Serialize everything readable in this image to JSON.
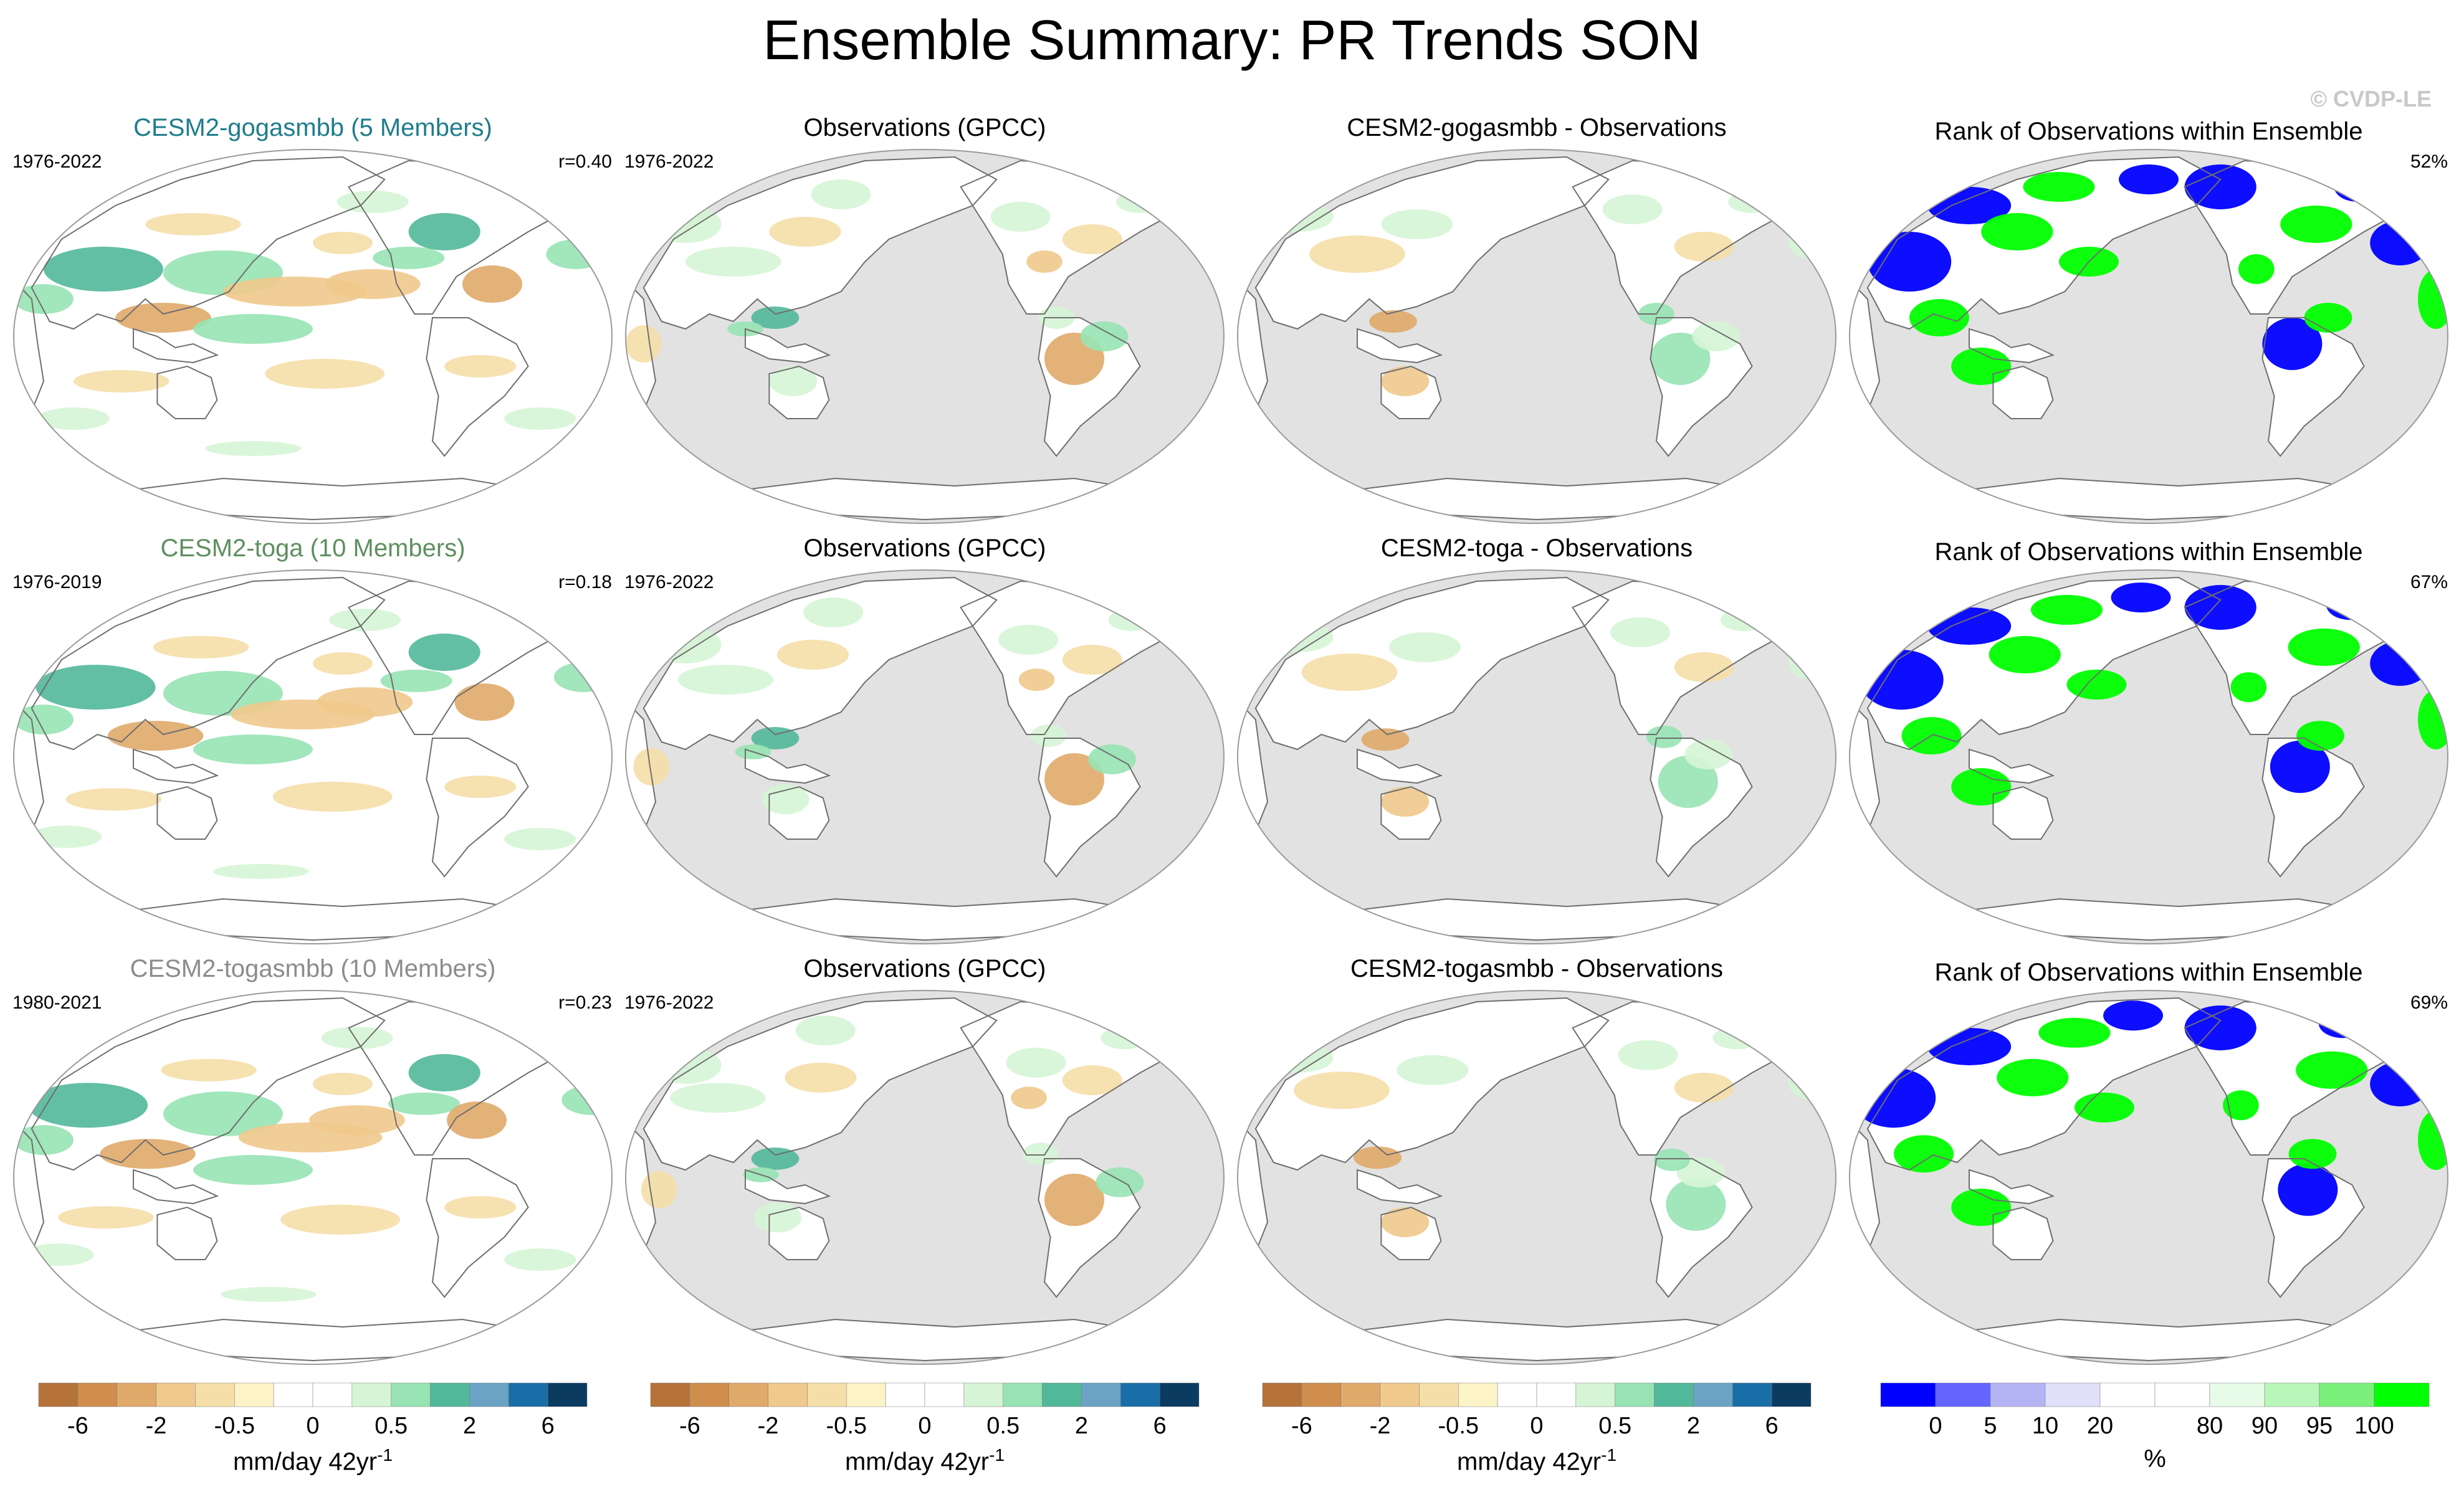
{
  "title": "Ensemble Summary: PR Trends SON",
  "watermark": "© CVDP-LE",
  "colors": {
    "ocean_gray": "#e2e2e2",
    "coast": "#6e6e6e",
    "teal_title": "#1f7d8c",
    "green_title": "#5e8f5e",
    "gray_title": "#8c8c8c",
    "rank_blue": "#0000ee",
    "rank_green": "#00ff00"
  },
  "rows": [
    {
      "model_title": "CESM2-gogasmbb (5 Members)",
      "model_years": "1976-2022",
      "corr": "r=0.40",
      "obs_title": "Observations (GPCC)",
      "obs_years": "1976-2022",
      "diff_title": "CESM2-gogasmbb - Observations",
      "rank_title": "Rank of Observations within Ensemble",
      "rank_pct": "52%"
    },
    {
      "model_title": "CESM2-toga (10 Members)",
      "model_years": "1976-2019",
      "corr": "r=0.18",
      "obs_title": "Observations (GPCC)",
      "obs_years": "1976-2022",
      "diff_title": "CESM2-toga - Observations",
      "rank_title": "Rank of Observations within Ensemble",
      "rank_pct": "67%"
    },
    {
      "model_title": "CESM2-togasmbb (10 Members)",
      "model_years": "1980-2021",
      "corr": "r=0.23",
      "obs_title": "Observations (GPCC)",
      "obs_years": "1976-2022",
      "diff_title": "CESM2-togasmbb - Observations",
      "rank_title": "Rank of Observations within Ensemble",
      "rank_pct": "69%"
    }
  ],
  "trend_colorbar": {
    "colors": [
      "#b5733a",
      "#cf8e4e",
      "#e0aa6a",
      "#f0c98c",
      "#f5dea8",
      "#fcf3c7",
      "#ffffff",
      "#ffffff",
      "#d6f5d6",
      "#98e3b4",
      "#52b89a",
      "#6aa3c4",
      "#1a6ea8",
      "#0b3b60"
    ],
    "labels": [
      "-6",
      "-2",
      "-0.5",
      "0",
      "0.5",
      "2",
      "6"
    ],
    "unit": "mm/day 42yr",
    "unit_sup": "-1"
  },
  "rank_colorbar": {
    "colors": [
      "#0000ff",
      "#6464ff",
      "#b4b4f5",
      "#e0e0fa",
      "#ffffff",
      "#ffffff",
      "#e8fbe8",
      "#b9f6b9",
      "#7bf07b",
      "#00ff00"
    ],
    "labels": [
      "0",
      "5",
      "10",
      "20",
      "80",
      "90",
      "95",
      "100"
    ],
    "unit": "%"
  }
}
